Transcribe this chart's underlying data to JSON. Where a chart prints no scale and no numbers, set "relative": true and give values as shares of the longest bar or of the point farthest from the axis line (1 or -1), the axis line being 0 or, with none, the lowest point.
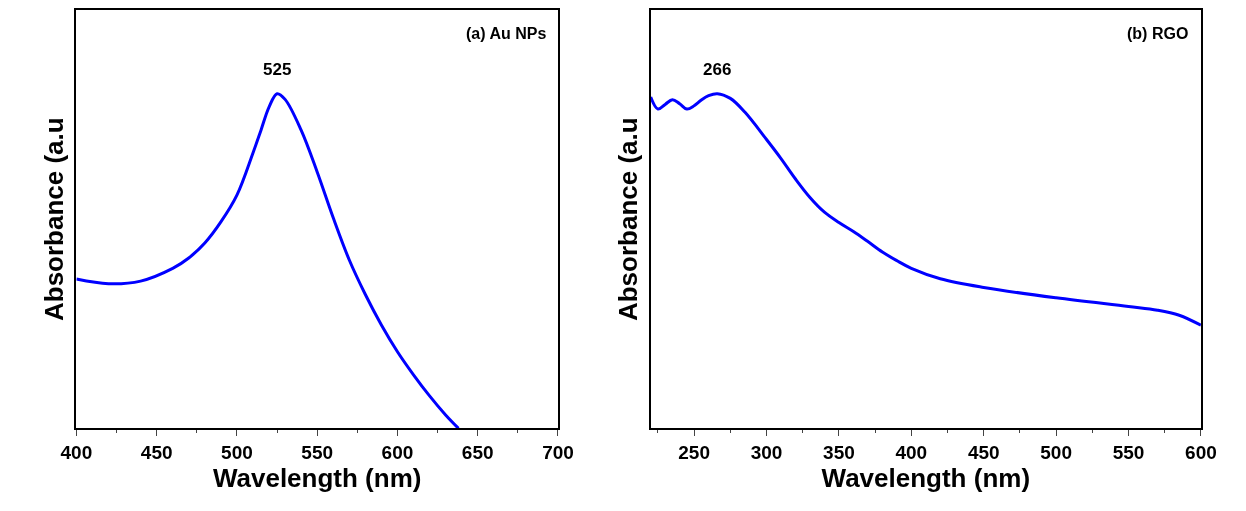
{
  "chart_data": [
    {
      "type": "line",
      "relative": true,
      "xlabel": "Wavelength (nm)",
      "ylabel": "Absorbance (a.u",
      "xlim": [
        400,
        700
      ],
      "xticks": [
        400,
        450,
        500,
        550,
        600,
        650,
        700
      ],
      "marker": "none",
      "line_style": "solid",
      "annotations": [
        "(a) Au NPs",
        {
          "text": "525",
          "x": 525,
          "y": 1
        }
      ],
      "x": [
        400,
        420,
        440,
        460,
        470,
        480,
        490,
        500,
        510,
        515,
        520,
        525,
        530,
        540,
        550,
        560,
        570,
        580,
        590,
        600,
        610,
        620,
        630,
        638
      ],
      "series": [
        {
          "color": "#0000ff",
          "values": [
            0.446,
            0.432,
            0.44,
            0.478,
            0.509,
            0.554,
            0.617,
            0.697,
            0.823,
            0.891,
            0.96,
            1,
            0.983,
            0.891,
            0.766,
            0.629,
            0.503,
            0.4,
            0.309,
            0.229,
            0.16,
            0.097,
            0.04,
            0
          ]
        }
      ]
    },
    {
      "type": "line",
      "relative": true,
      "xlabel": "Wavelength (nm)",
      "ylabel": "Absorbance (a.u",
      "xlim": [
        220,
        600
      ],
      "xticks": [
        250,
        300,
        350,
        400,
        450,
        500,
        550,
        600
      ],
      "marker": "none",
      "line_style": "solid",
      "annotations": [
        "(b) RGO",
        {
          "text": "266",
          "x": 266,
          "y": 1
        }
      ],
      "x": [
        220,
        225,
        230,
        235,
        240,
        245,
        250,
        255,
        260,
        266,
        275,
        285,
        300,
        310,
        320,
        330,
        340,
        350,
        360,
        370,
        380,
        390,
        400,
        420,
        450,
        500,
        550,
        570,
        585,
        600
      ],
      "series": [
        {
          "color": "#0000ff",
          "values": [
            0.99,
            0.954,
            0.968,
            0.982,
            0.97,
            0.954,
            0.964,
            0.981,
            0.994,
            1,
            0.986,
            0.945,
            0.863,
            0.806,
            0.745,
            0.69,
            0.646,
            0.615,
            0.588,
            0.558,
            0.527,
            0.501,
            0.478,
            0.447,
            0.421,
            0.39,
            0.364,
            0.353,
            0.338,
            0.308
          ]
        }
      ]
    }
  ]
}
